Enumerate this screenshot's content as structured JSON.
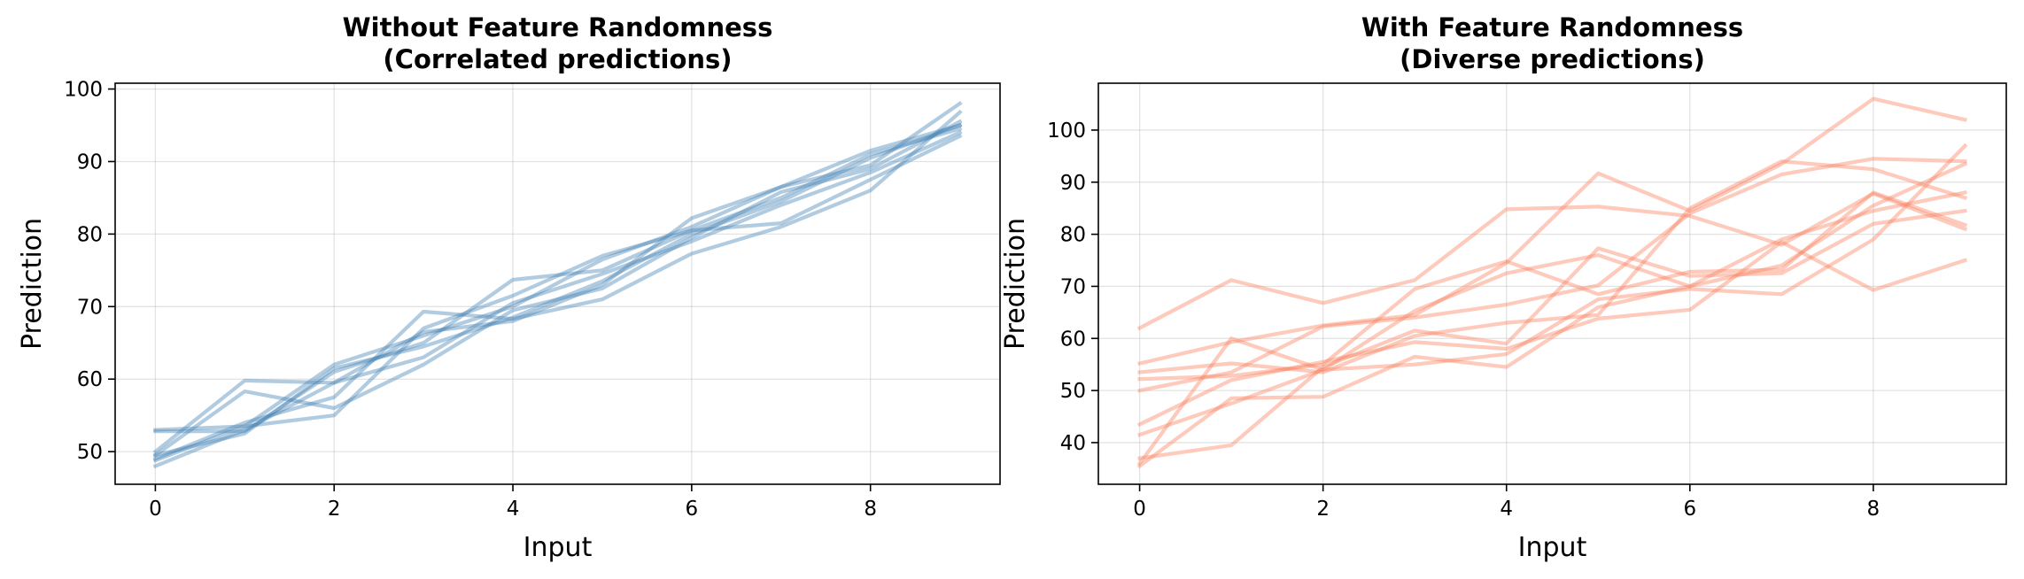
{
  "chart_data": [
    {
      "type": "line",
      "title": "Without Feature Randomness\n(Correlated predictions)",
      "xlabel": "Input",
      "ylabel": "Prediction",
      "xlim": [
        -0.45,
        9.45
      ],
      "ylim": [
        45.5,
        100.8
      ],
      "xticks": [
        0,
        2,
        4,
        6,
        8
      ],
      "yticks": [
        50,
        60,
        70,
        80,
        90,
        100
      ],
      "grid": true,
      "color": "#4682b4",
      "x": [
        0,
        1,
        2,
        3,
        4,
        5,
        6,
        7,
        8,
        9
      ],
      "series": [
        {
          "values": [
            49.5,
            52.5,
            61.5,
            64.5,
            68.5,
            73.5,
            80.0,
            84.5,
            90.5,
            95.0
          ]
        },
        {
          "values": [
            48.0,
            53.0,
            59.5,
            63.0,
            70.5,
            74.5,
            79.0,
            84.0,
            88.5,
            94.0
          ]
        },
        {
          "values": [
            53.0,
            53.5,
            55.0,
            67.0,
            71.5,
            77.0,
            80.5,
            85.0,
            91.0,
            94.5
          ]
        },
        {
          "values": [
            50.0,
            59.8,
            59.5,
            66.5,
            68.0,
            73.0,
            82.2,
            86.5,
            89.5,
            98.0
          ]
        },
        {
          "values": [
            49.0,
            54.0,
            57.5,
            69.3,
            68.3,
            71.0,
            77.3,
            81.0,
            86.0,
            96.8
          ]
        },
        {
          "values": [
            52.8,
            52.8,
            61.0,
            65.0,
            73.7,
            75.0,
            80.5,
            81.5,
            87.5,
            93.5
          ]
        },
        {
          "values": [
            49.5,
            58.3,
            56.0,
            62.0,
            69.5,
            72.5,
            79.5,
            85.8,
            89.0,
            95.5
          ]
        },
        {
          "values": [
            48.8,
            53.5,
            62.0,
            66.0,
            70.0,
            76.5,
            81.0,
            86.5,
            91.5,
            95.0
          ]
        }
      ]
    },
    {
      "type": "line",
      "title": "With Feature Randomness\n(Diverse predictions)",
      "xlabel": "Input",
      "ylabel": "Prediction",
      "xlim": [
        -0.45,
        9.45
      ],
      "ylim": [
        32.0,
        109.0
      ],
      "xticks": [
        0,
        2,
        4,
        6,
        8
      ],
      "yticks": [
        40,
        50,
        60,
        70,
        80,
        90,
        100
      ],
      "grid": true,
      "color": "#fa8060",
      "x": [
        0,
        1,
        2,
        3,
        4,
        5,
        6,
        7,
        8,
        9
      ],
      "series": [
        {
          "values": [
            62.0,
            71.2,
            66.8,
            71.2,
            84.8,
            85.3,
            83.5,
            78.0,
            87.8,
            81.0
          ]
        },
        {
          "values": [
            55.2,
            59.3,
            62.5,
            64.5,
            74.5,
            91.7,
            84.5,
            93.5,
            106.0,
            102.0
          ]
        },
        {
          "values": [
            50.0,
            53.5,
            62.3,
            64.0,
            66.5,
            70.2,
            84.0,
            91.5,
            94.5,
            94.0
          ]
        },
        {
          "values": [
            52.2,
            52.8,
            55.0,
            69.5,
            74.8,
            68.5,
            72.8,
            73.2,
            88.0,
            81.8
          ]
        },
        {
          "values": [
            43.5,
            52.0,
            55.5,
            59.3,
            58.0,
            63.8,
            65.5,
            78.5,
            69.3,
            75.0
          ]
        },
        {
          "values": [
            41.5,
            47.5,
            54.0,
            65.3,
            72.5,
            76.0,
            70.0,
            74.0,
            85.5,
            93.5
          ]
        },
        {
          "values": [
            37.0,
            39.5,
            54.5,
            61.5,
            59.0,
            77.3,
            72.0,
            72.5,
            82.0,
            84.5
          ]
        },
        {
          "values": [
            35.5,
            48.5,
            48.8,
            56.5,
            54.5,
            66.0,
            70.0,
            79.0,
            84.5,
            88.0
          ]
        },
        {
          "values": [
            36.0,
            60.0,
            54.0,
            55.0,
            57.0,
            67.5,
            69.5,
            68.5,
            79.0,
            97.0
          ]
        },
        {
          "values": [
            53.5,
            55.2,
            53.5,
            60.5,
            63.0,
            64.5,
            85.0,
            94.0,
            92.5,
            87.0
          ]
        }
      ]
    }
  ]
}
